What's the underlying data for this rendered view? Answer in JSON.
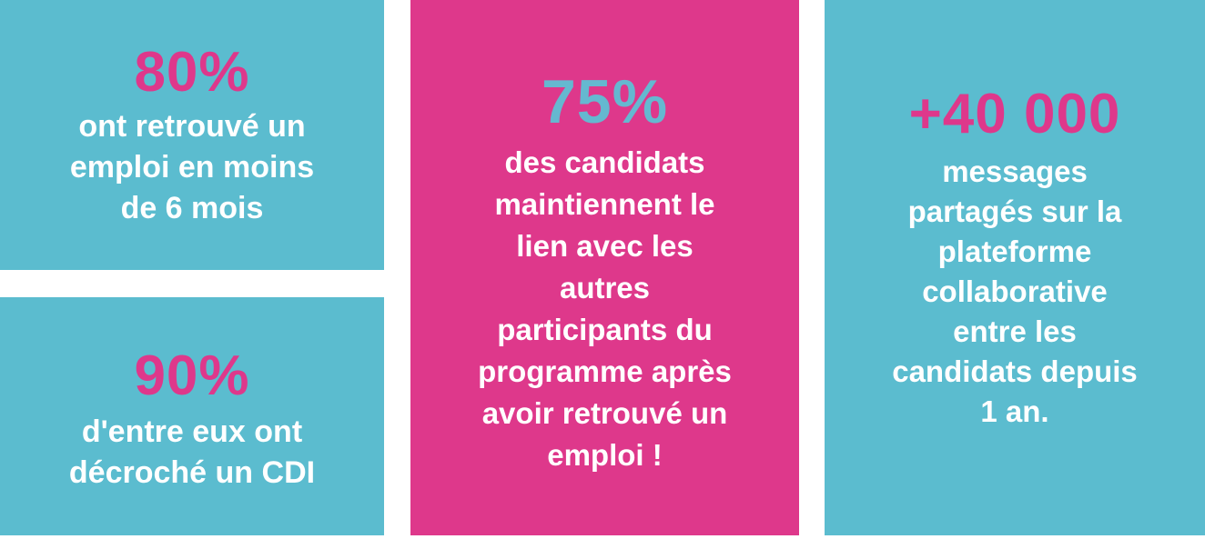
{
  "colors": {
    "teal": "#5bbccf",
    "pink": "#de388b",
    "light_blue_number": "#65b8d0",
    "white": "#ffffff"
  },
  "stats": [
    {
      "value": "80%",
      "description": "ont retrouvé un\nemploi en moins\nde 6 mois"
    },
    {
      "value": "90%",
      "description": "d'entre eux ont\ndécroché un CDI"
    },
    {
      "value": "75%",
      "description": "des candidats\nmaintiennent le\nlien avec les\nautres\nparticipants du\nprogramme après\navoir retrouvé un\nemploi !"
    },
    {
      "value": "+40 000",
      "description": "messages\npartagés sur la\nplateforme\ncollaborative\nentre les\ncandidats depuis\n1 an."
    }
  ]
}
